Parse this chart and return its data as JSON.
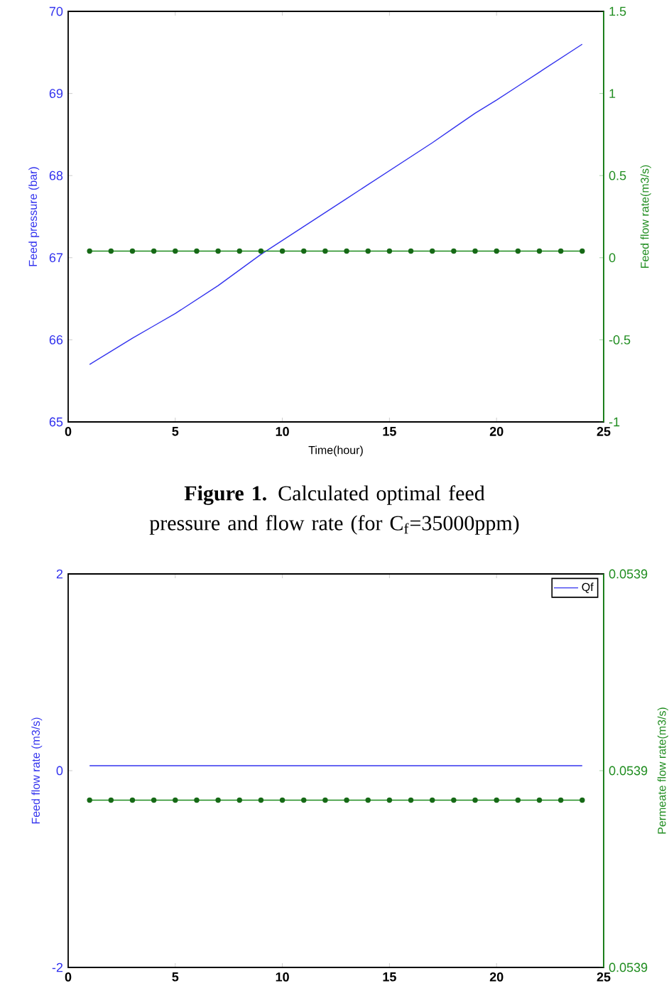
{
  "chart_data": [
    {
      "type": "line",
      "xlabel": "Time(hour)",
      "ylabel": "Feed pressure (bar)",
      "y2label": "Feed flow rate(m3/s)",
      "x": [
        1,
        2,
        3,
        4,
        5,
        6,
        7,
        8,
        9,
        10,
        11,
        12,
        13,
        14,
        15,
        16,
        17,
        18,
        19,
        20,
        21,
        22,
        23,
        24
      ],
      "series": [
        {
          "color": "#3333ee",
          "values": [
            65.7,
            65.86,
            66.02,
            66.17,
            66.32,
            66.49,
            66.66,
            66.85,
            67.04,
            67.21,
            67.38,
            67.55,
            67.72,
            67.89,
            68.06,
            68.23,
            68.4,
            68.58,
            68.76,
            68.92,
            69.09,
            69.26,
            69.43,
            69.6
          ]
        },
        {
          "color": "#1e8c1e",
          "axis": "y2",
          "marker": "circle",
          "values": [
            0.04,
            0.04,
            0.04,
            0.04,
            0.04,
            0.04,
            0.04,
            0.04,
            0.04,
            0.04,
            0.04,
            0.04,
            0.04,
            0.04,
            0.04,
            0.04,
            0.04,
            0.04,
            0.04,
            0.04,
            0.04,
            0.04,
            0.04,
            0.04
          ]
        }
      ],
      "xlim": [
        0,
        25
      ],
      "xticks": [
        0,
        5,
        10,
        15,
        20,
        25
      ],
      "ylim": [
        65,
        70
      ],
      "yticks": [
        65,
        66,
        67,
        68,
        69,
        70
      ],
      "y2lim": [
        -1,
        1.5
      ],
      "y2ticks": [
        -1,
        -0.5,
        0,
        0.5,
        1,
        1.5
      ],
      "annotations": [
        "**Figure 1.** Calculated optimal feed pressure and flow rate (for C$_{f}$=35000ppm)"
      ]
    },
    {
      "type": "line",
      "ylabel": "Feed flow rate (m3/s)",
      "y2label": "Permeate flow rate(m3/s)",
      "legend": "top right",
      "x": [
        1,
        2,
        3,
        4,
        5,
        6,
        7,
        8,
        9,
        10,
        11,
        12,
        13,
        14,
        15,
        16,
        17,
        18,
        19,
        20,
        21,
        22,
        23,
        24
      ],
      "series": [
        {
          "name": "Qf",
          "color": "#3333ee",
          "values": [
            0.05,
            0.05,
            0.05,
            0.05,
            0.05,
            0.05,
            0.05,
            0.05,
            0.05,
            0.05,
            0.05,
            0.05,
            0.05,
            0.05,
            0.05,
            0.05,
            0.05,
            0.05,
            0.05,
            0.05,
            0.05,
            0.05,
            0.05,
            0.05
          ]
        },
        {
          "color": "#1e8c1e",
          "axis": "y2",
          "marker": "circle",
          "values": [
            0.053894,
            0.053894,
            0.053894,
            0.053894,
            0.053894,
            0.053894,
            0.053894,
            0.053894,
            0.053894,
            0.053894,
            0.053894,
            0.053894,
            0.053894,
            0.053894,
            0.053894,
            0.053894,
            0.053894,
            0.053894,
            0.053894,
            0.053894,
            0.053894,
            0.053894,
            0.053894,
            0.053894
          ]
        }
      ],
      "xlim": [
        0,
        25
      ],
      "xticks": [
        0,
        5,
        10,
        15,
        20,
        25
      ],
      "ylim": [
        -2,
        2
      ],
      "yticks": [
        -2,
        0,
        2
      ],
      "y2lim": [
        0.05386,
        0.05394
      ],
      "y2ticks": [
        {
          "value": 0.05386,
          "label": "0.0539"
        },
        {
          "value": 0.0539,
          "label": "0.0539"
        },
        {
          "value": 0.05394,
          "label": "0.0539"
        }
      ]
    }
  ]
}
